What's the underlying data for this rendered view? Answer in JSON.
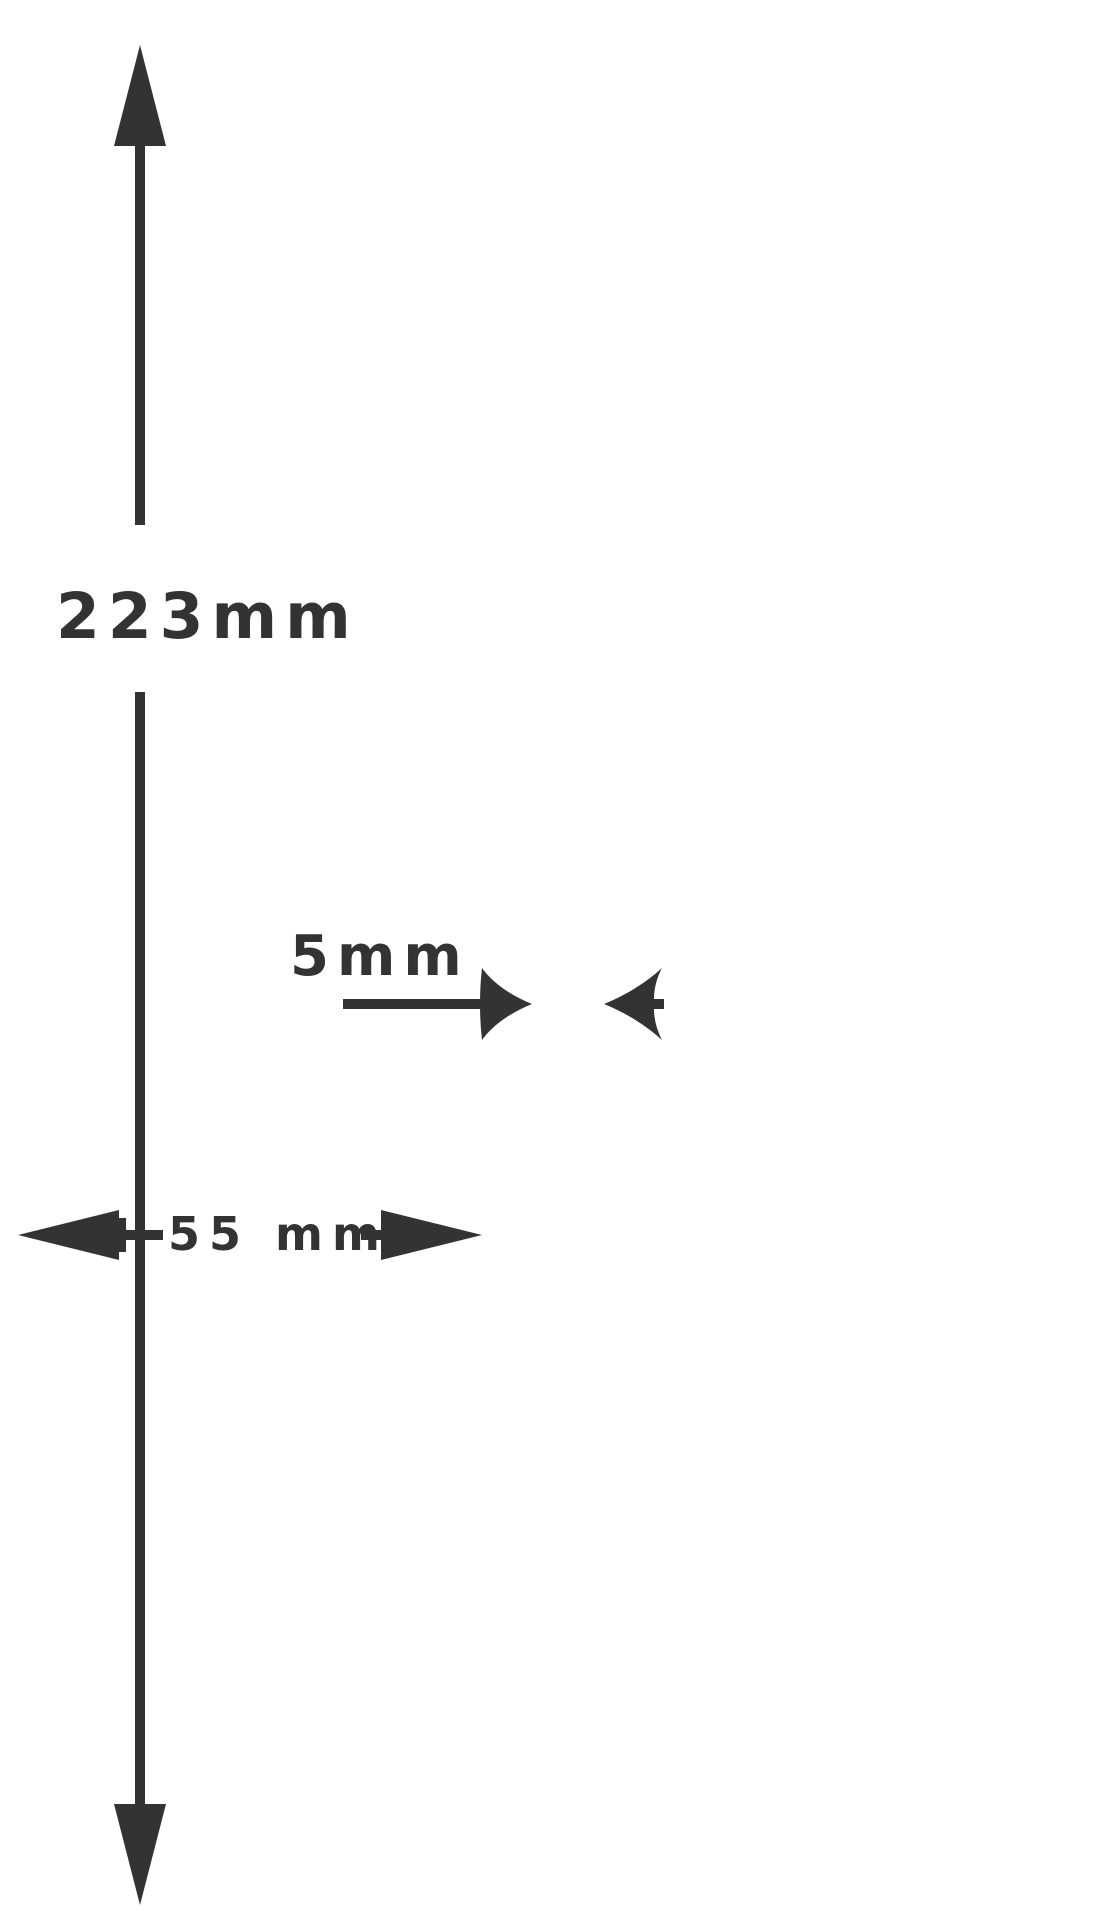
{
  "colors": {
    "ink": "#333333",
    "background": "#ffffff"
  },
  "dimensions": {
    "height": {
      "value": 223,
      "unit": "mm",
      "label": "223mm"
    },
    "gap": {
      "value": 5,
      "unit": "mm",
      "label": "5mm"
    },
    "width": {
      "value": 55,
      "unit": "mm",
      "label": "55 mm"
    }
  }
}
